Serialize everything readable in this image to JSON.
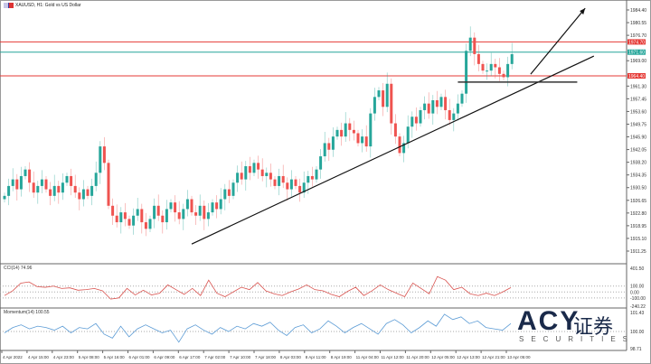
{
  "header": {
    "title": "XAUUSD, H1:  Gold vs US Dollar"
  },
  "logo": {
    "brand": "ACY",
    "chinese": "证券",
    "sub": "SECURITIES",
    "reg": "®"
  },
  "chart_data": [
    {
      "type": "candlestick",
      "title": "XAUUSD, H1: Gold vs US Dollar",
      "closes": [
        1928,
        1931,
        1933,
        1930,
        1934,
        1936,
        1932,
        1929,
        1931,
        1933,
        1930,
        1928,
        1931,
        1929,
        1932,
        1934,
        1931,
        1929,
        1927,
        1930,
        1928,
        1931,
        1935,
        1943,
        1938,
        1925,
        1922,
        1920,
        1923,
        1921,
        1919,
        1922,
        1924,
        1920,
        1918,
        1921,
        1925,
        1922,
        1920,
        1924,
        1926,
        1923,
        1921,
        1924,
        1927,
        1923,
        1922,
        1925,
        1921,
        1923,
        1926,
        1924,
        1927,
        1930,
        1928,
        1932,
        1935,
        1933,
        1937,
        1935,
        1938,
        1936,
        1934,
        1935,
        1933,
        1931,
        1934,
        1932,
        1930,
        1933,
        1931,
        1929,
        1932,
        1934,
        1933,
        1936,
        1940,
        1944,
        1942,
        1946,
        1948,
        1946,
        1950,
        1948,
        1947,
        1944,
        1946,
        1943,
        1953,
        1958,
        1960,
        1955,
        1962,
        1950,
        1946,
        1941,
        1944,
        1949,
        1952,
        1950,
        1954,
        1956,
        1953,
        1957,
        1955,
        1958,
        1954,
        1951,
        1953,
        1956,
        1959,
        1972,
        1976,
        1971,
        1968,
        1966,
        1966,
        1968,
        1967,
        1965,
        1964,
        1968,
        1971
      ],
      "up_color": "#26a69a",
      "down_color": "#ef5350",
      "ylim": [
        1909,
        1988
      ],
      "y_ticks": [
        "1984.40",
        "1980.55",
        "1976.70",
        "1969.00",
        "1961.30",
        "1957.45",
        "1953.60",
        "1949.75",
        "1945.90",
        "1942.05",
        "1938.20",
        "1934.35",
        "1930.50",
        "1926.65",
        "1922.80",
        "1918.95",
        "1915.10",
        "1911.25"
      ],
      "levels": [
        {
          "price": 1974.7,
          "label": "1974.70",
          "color": "#e53935"
        },
        {
          "price": 1971.6,
          "label": "1971.60",
          "color": "#26a69a"
        },
        {
          "price": 1964.4,
          "label": "1964.40",
          "color": "#e53935"
        }
      ],
      "annotations": {
        "trendline": [
          [
            45,
            1913.4
          ],
          [
            141.7,
            1970.4
          ]
        ],
        "arrow": [
          [
            126.5,
            1964.9
          ],
          [
            139.6,
            1984.9
          ]
        ],
        "support": [
          [
            109,
            1962.5
          ],
          [
            137.7,
            1962.5
          ]
        ]
      },
      "x_ticks": [
        "4 Apr 2022",
        "4 Apr 15:00",
        "4 Apr 23:00",
        "5 Apr 08:00",
        "5 Apr 16:00",
        "6 Apr 01:00",
        "6 Apr 09:00",
        "6 Apr 17:00",
        "7 Apr 02:00",
        "7 Apr 10:00",
        "7 Apr 18:00",
        "8 Apr 03:00",
        "8 Apr 11:00",
        "8 Apr 19:00",
        "11 Apr 04:00",
        "11 Apr 12:00",
        "11 Apr 20:00",
        "12 Apr 05:00",
        "12 Apr 13:00",
        "12 Apr 21:00",
        "13 Apr 05:00"
      ]
    },
    {
      "type": "line",
      "title": "CCI(14) 74.96",
      "color": "#d9534f",
      "ylim": [
        -240.22,
        401.5
      ],
      "y_ticks": [
        "401.50",
        "100.00",
        "0.00",
        "-100.00",
        "-240.22"
      ],
      "levels": [
        100,
        0,
        -100
      ],
      "values": [
        -60,
        20,
        150,
        170,
        90,
        80,
        100,
        60,
        70,
        30,
        40,
        60,
        20,
        -120,
        -100,
        60,
        -50,
        30,
        -50,
        -20,
        120,
        40,
        -40,
        60,
        -60,
        200,
        -20,
        -80,
        0,
        80,
        40,
        160,
        20,
        -30,
        -60,
        0,
        50,
        120,
        40,
        20,
        -40,
        -80,
        10,
        80,
        -60,
        20,
        120,
        40,
        -20,
        -80,
        150,
        60,
        -30,
        260,
        200,
        40,
        80,
        -30,
        -60,
        -20,
        -60,
        0,
        75
      ]
    },
    {
      "type": "line",
      "title": "Momentum(14) 100.55",
      "color": "#5b9bd5",
      "ylim": [
        98.71,
        101.43
      ],
      "y_ticks": [
        "101.43",
        "100.00",
        "98.71"
      ],
      "levels": [
        100
      ],
      "values": [
        99.9,
        100.3,
        100.5,
        100.2,
        100.4,
        100.3,
        100.1,
        100.4,
        99.9,
        100.3,
        100.2,
        100.6,
        99.8,
        99.5,
        100.4,
        99.6,
        100.2,
        100.5,
        100.2,
        99.9,
        100.1,
        99.2,
        100.2,
        100.5,
        100.1,
        99.8,
        100.3,
        100.0,
        100.4,
        100.2,
        100.6,
        100.4,
        100.7,
        100.1,
        99.7,
        100.3,
        100.5,
        99.9,
        100.2,
        100.8,
        100.4,
        99.9,
        100.3,
        100.6,
        100.2,
        99.8,
        100.6,
        100.9,
        100.5,
        99.9,
        100.3,
        100.8,
        100.4,
        101.3,
        100.9,
        101.1,
        100.6,
        100.8,
        100.3,
        100.2,
        100.1,
        100.6
      ]
    }
  ]
}
